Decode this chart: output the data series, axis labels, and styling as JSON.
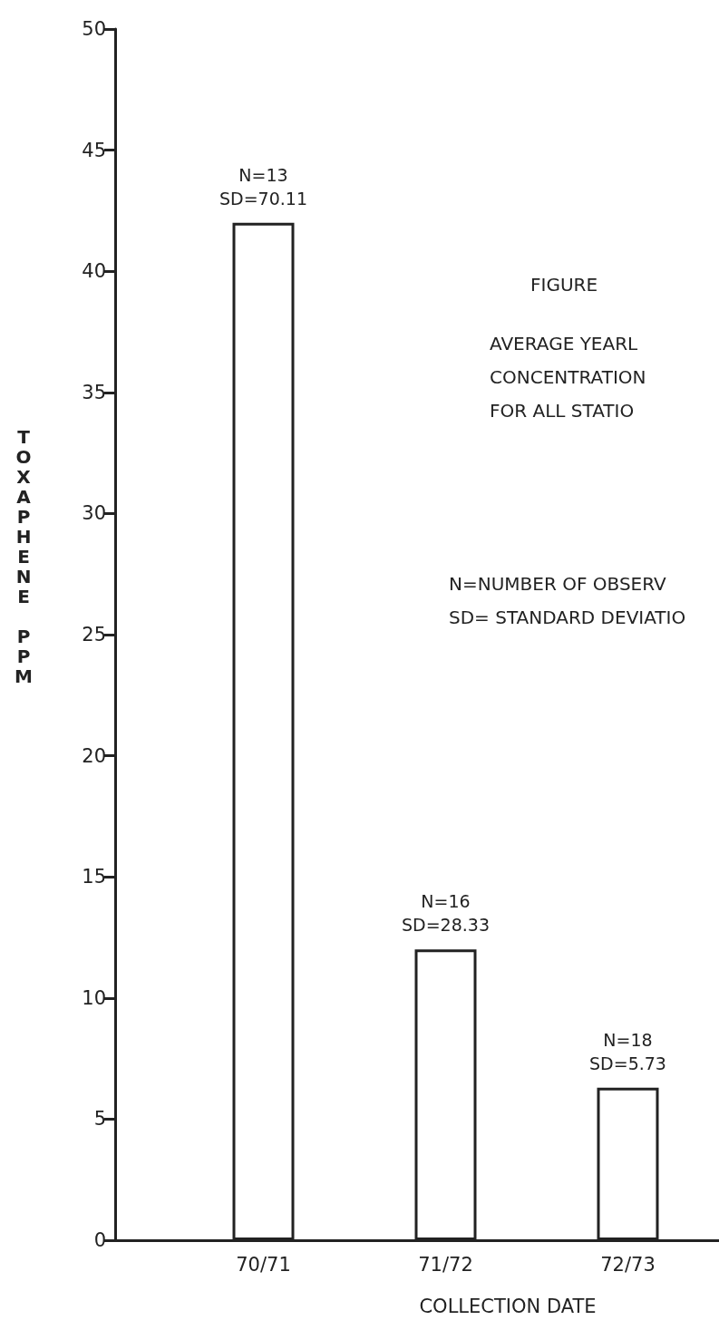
{
  "chart_data": {
    "type": "bar",
    "xlabel": "COLLECTION DATE",
    "ylabel": "TOXAPHENE PPM",
    "categories": [
      "70/71",
      "71/72",
      "72/73"
    ],
    "values": [
      42,
      12,
      6.3
    ],
    "color": "#ffffff",
    "value_labels": [
      "N=13\nSD=70.11",
      "N=16\nSD=28.33",
      "N=18\nSD=5.73"
    ],
    "ylim": [
      0,
      50
    ],
    "yticks": [
      0,
      5,
      10,
      15,
      20,
      25,
      30,
      35,
      40,
      45,
      50
    ],
    "grid": false,
    "annotations": [
      "FIGURE",
      "AVERAGE YEARL\nCONCENTRATION\nFOR ALL STATIO",
      "N=NUMBER OF OBSERV\nSD= STANDARD DEVIATIO"
    ]
  }
}
